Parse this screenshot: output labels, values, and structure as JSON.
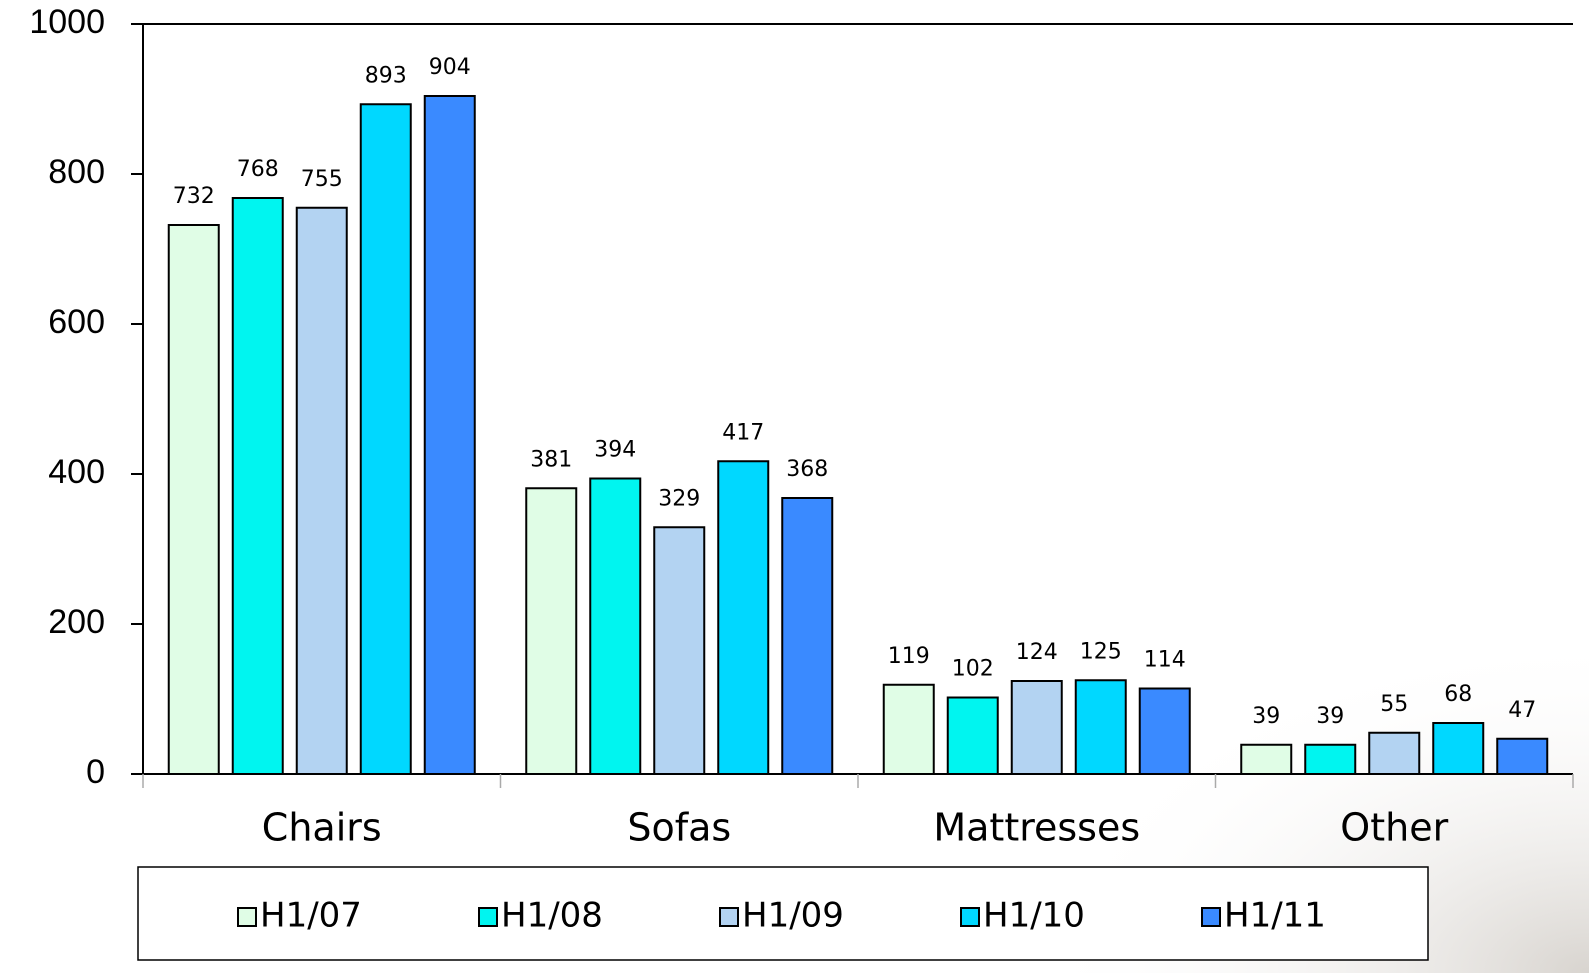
{
  "chart_data": {
    "type": "bar",
    "categories": [
      "Chairs",
      "Sofas",
      "Mattresses",
      "Other"
    ],
    "series": [
      {
        "name": "H1/07",
        "color": "#e0fde6",
        "values": [
          732,
          381,
          119,
          39
        ]
      },
      {
        "name": "H1/08",
        "color": "#00f5f0",
        "values": [
          768,
          394,
          102,
          39
        ]
      },
      {
        "name": "H1/09",
        "color": "#b3d3f2",
        "values": [
          755,
          329,
          124,
          55
        ]
      },
      {
        "name": "H1/10",
        "color": "#00d8ff",
        "values": [
          893,
          417,
          125,
          68
        ]
      },
      {
        "name": "H1/11",
        "color": "#3a8aff",
        "values": [
          904,
          368,
          114,
          47
        ]
      }
    ],
    "ylim": [
      0,
      1000
    ],
    "yticks": [
      0,
      200,
      400,
      600,
      800,
      1000
    ],
    "grid": false,
    "legend": "bottom",
    "data_labels": true
  }
}
